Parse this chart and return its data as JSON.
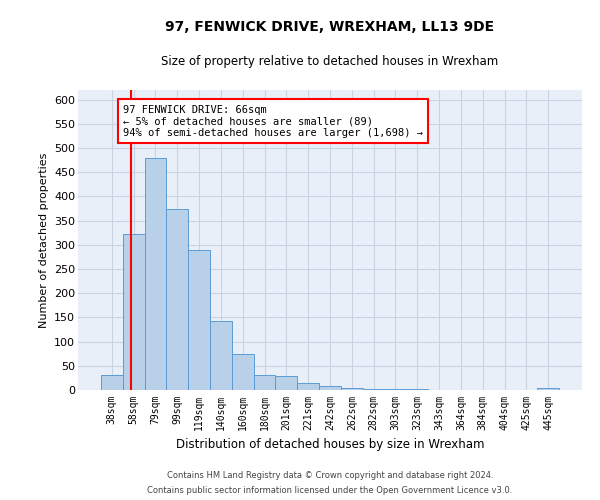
{
  "title": "97, FENWICK DRIVE, WREXHAM, LL13 9DE",
  "subtitle": "Size of property relative to detached houses in Wrexham",
  "xlabel": "Distribution of detached houses by size in Wrexham",
  "ylabel": "Number of detached properties",
  "bar_labels": [
    "38sqm",
    "58sqm",
    "79sqm",
    "99sqm",
    "119sqm",
    "140sqm",
    "160sqm",
    "180sqm",
    "201sqm",
    "221sqm",
    "242sqm",
    "262sqm",
    "282sqm",
    "303sqm",
    "323sqm",
    "343sqm",
    "364sqm",
    "384sqm",
    "404sqm",
    "425sqm",
    "445sqm"
  ],
  "bar_values": [
    32,
    322,
    480,
    375,
    290,
    143,
    75,
    32,
    28,
    15,
    8,
    5,
    3,
    2,
    2,
    1,
    1,
    0,
    0,
    0,
    5
  ],
  "bar_color": "#b8d0e8",
  "bar_edge_color": "#5b9bd5",
  "annotation_text": "97 FENWICK DRIVE: 66sqm\n← 5% of detached houses are smaller (89)\n94% of semi-detached houses are larger (1,698) →",
  "annotation_box_color": "white",
  "annotation_box_edge": "red",
  "vline_color": "red",
  "ylim": [
    0,
    620
  ],
  "yticks": [
    0,
    50,
    100,
    150,
    200,
    250,
    300,
    350,
    400,
    450,
    500,
    550,
    600
  ],
  "footer_line1": "Contains HM Land Registry data © Crown copyright and database right 2024.",
  "footer_line2": "Contains public sector information licensed under the Open Government Licence v3.0.",
  "bg_color": "#e8eff8",
  "grid_color": "#c8d4e4"
}
